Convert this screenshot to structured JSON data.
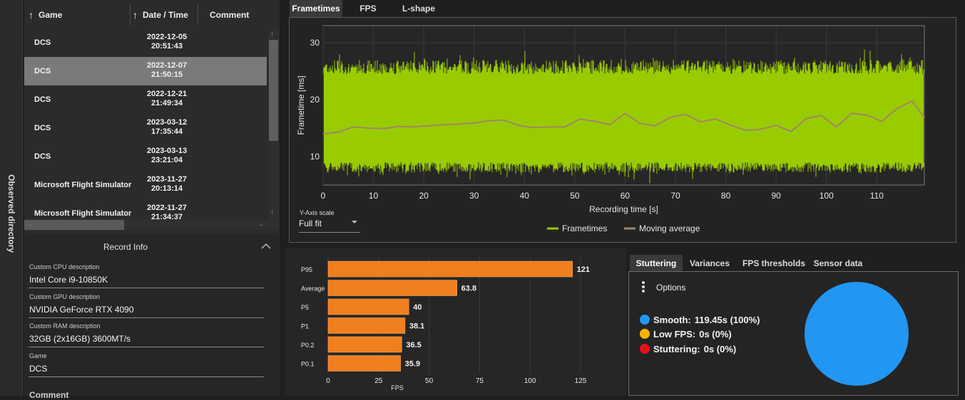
{
  "sidebar": {
    "label": "Observed directory"
  },
  "records": {
    "columns": [
      "Game",
      "Date / Time",
      "Comment"
    ],
    "rows": [
      {
        "game": "DCS",
        "date": "2022-12-05",
        "time": "20:51:43",
        "selected": false
      },
      {
        "game": "DCS",
        "date": "2022-12-07",
        "time": "21:50:15",
        "selected": true
      },
      {
        "game": "DCS",
        "date": "2022-12-21",
        "time": "21:49:34",
        "selected": false
      },
      {
        "game": "DCS",
        "date": "2023-03-12",
        "time": "17:35:44",
        "selected": false
      },
      {
        "game": "DCS",
        "date": "2023-03-13",
        "time": "23:21:04",
        "selected": false
      },
      {
        "game": "Microsoft Flight Simulator",
        "date": "2023-11-27",
        "time": "20:13:14",
        "selected": false
      },
      {
        "game": "Microsoft Flight Simulator",
        "date": "2022-11-27",
        "time": "21:34:37",
        "selected": false
      }
    ]
  },
  "record_info": {
    "title": "Record Info",
    "fields": [
      {
        "label": "Custom CPU description",
        "value": "Intel Core i9-10850K"
      },
      {
        "label": "Custom GPU description",
        "value": "NVIDIA GeForce RTX 4090"
      },
      {
        "label": "Custom RAM description",
        "value": "32GB (2x16GB) 3600MT/s"
      },
      {
        "label": "Game",
        "value": "DCS"
      },
      {
        "label": "Comment",
        "value": ""
      }
    ]
  },
  "top_tabs": [
    "Frametimes",
    "FPS",
    "L-shape"
  ],
  "frametime_controls": {
    "scale_label": "Y-Axis scale",
    "scale_value": "Full fit"
  },
  "chart_data": [
    {
      "type": "line",
      "xlabel": "Recording time [s]",
      "ylabel": "Frametime [ms]",
      "xlim": [
        0,
        119.45
      ],
      "ylim": [
        5,
        33
      ],
      "xticks": [
        0,
        10,
        20,
        30,
        40,
        50,
        60,
        70,
        80,
        90,
        100,
        110
      ],
      "yticks": [
        10,
        20,
        30
      ],
      "grid": true,
      "legend_position": "bottom-center",
      "series": [
        {
          "name": "Frametimes",
          "color": "#99cc00",
          "band_min": 9,
          "band_max": 24.5
        },
        {
          "name": "Moving average",
          "color": "#a08868",
          "x": [
            0,
            3,
            6,
            9,
            12,
            15,
            18,
            21,
            24,
            27,
            30,
            33,
            36,
            39,
            42,
            45,
            48,
            51,
            54,
            57,
            60,
            63,
            66,
            69,
            72,
            75,
            78,
            81,
            84,
            87,
            90,
            93,
            96,
            99,
            102,
            105,
            108,
            111,
            114,
            117,
            119.45
          ],
          "y": [
            14,
            14.3,
            15.2,
            15,
            14.9,
            15.3,
            15.2,
            15.4,
            15.6,
            15.7,
            15.9,
            16.3,
            16.4,
            15.4,
            15.1,
            15.2,
            15.2,
            16.6,
            16.2,
            15.6,
            17.6,
            15.8,
            15.4,
            16.9,
            17.4,
            16.1,
            16.6,
            15.5,
            14.6,
            14.8,
            15.5,
            14.4,
            16.7,
            17.2,
            15.2,
            17.6,
            17.3,
            16.2,
            18.4,
            19.8,
            16.9
          ]
        }
      ]
    },
    {
      "type": "bar",
      "xlabel": "FPS",
      "xlim": [
        0,
        125
      ],
      "xticks": [
        0,
        25,
        50,
        75,
        100,
        125
      ],
      "categories": [
        "P95",
        "Average",
        "P5",
        "P1",
        "P0.2",
        "P0.1"
      ],
      "values": [
        121,
        63.8,
        40,
        38.1,
        36.5,
        35.9
      ],
      "value_labels": [
        "121",
        "63.8",
        "40",
        "38.1",
        "36.5",
        "35.9"
      ],
      "color": "#f07f1e"
    },
    {
      "type": "pie",
      "categories": [
        "Smooth",
        "Low FPS",
        "Stuttering"
      ],
      "values": [
        100,
        0,
        0
      ],
      "colors": [
        "#2196f3",
        "#f5b400",
        "#e8101a"
      ]
    }
  ],
  "bottom_tabs": [
    "Stuttering",
    "Variances",
    "FPS thresholds",
    "Sensor data"
  ],
  "stuttering": {
    "options_label": "Options",
    "legend": [
      {
        "label": "Smooth:",
        "value": "119.45s (100%)",
        "color": "#2196f3"
      },
      {
        "label": "Low FPS:",
        "value": "0s (0%)",
        "color": "#f5b400"
      },
      {
        "label": "Stuttering:",
        "value": "0s (0%)",
        "color": "#e8101a"
      }
    ]
  }
}
